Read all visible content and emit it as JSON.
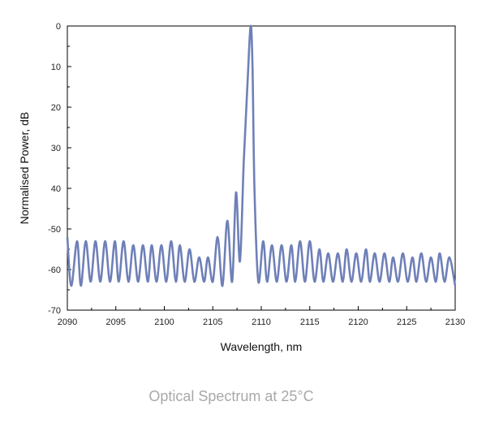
{
  "caption": "Optical Spectrum at 25°C",
  "chart_data": {
    "type": "line",
    "xlabel": "Wavelength, nm",
    "ylabel": "Normalised Power, dB",
    "xlim": [
      2090,
      2130
    ],
    "ylim": [
      -70,
      0
    ],
    "y_inverted_axis_direction": "top is 0, bottom is -70",
    "xticks": [
      2090,
      2095,
      2100,
      2105,
      2110,
      2115,
      2120,
      2125,
      2130
    ],
    "xtick_labels": [
      "2090",
      "2095",
      "2100",
      "2105",
      "2110",
      "2115",
      "2120",
      "2125",
      "2130"
    ],
    "yticks": [
      0,
      -10,
      -20,
      -30,
      -40,
      -50,
      -60,
      -70
    ],
    "ytick_labels": [
      "0",
      "10",
      "20",
      "30",
      "40",
      "-50",
      "-60",
      "-70"
    ],
    "grid": false,
    "series": [
      {
        "color": "#6f80b8",
        "x": [
          2090,
          2090.4,
          2091,
          2091.4,
          2091.9,
          2092.4,
          2092.9,
          2093.4,
          2093.9,
          2094.4,
          2094.9,
          2095.3,
          2095.8,
          2096.3,
          2096.8,
          2097.3,
          2097.8,
          2098.3,
          2098.7,
          2099.2,
          2099.7,
          2100.2,
          2100.7,
          2101.2,
          2101.6,
          2102.1,
          2102.6,
          2103.1,
          2103.6,
          2104.1,
          2104.5,
          2105,
          2105.5,
          2106,
          2106.5,
          2107,
          2107.4,
          2107.8,
          2108.2,
          2108.6,
          2108.9,
          2109.1,
          2109.3,
          2109.7,
          2110.2,
          2110.6,
          2111.1,
          2111.6,
          2112.1,
          2112.6,
          2113.1,
          2113.5,
          2114,
          2114.5,
          2115,
          2115.5,
          2116,
          2116.4,
          2116.9,
          2117.4,
          2117.9,
          2118.4,
          2118.8,
          2119.3,
          2119.8,
          2120.3,
          2120.8,
          2121.2,
          2121.7,
          2122.2,
          2122.7,
          2123.2,
          2123.6,
          2124.1,
          2124.6,
          2125.1,
          2125.6,
          2126,
          2126.5,
          2127,
          2127.5,
          2128,
          2128.4,
          2128.9,
          2129.4,
          2130
        ],
        "y": [
          -52,
          -64,
          -53,
          -64,
          -53,
          -63,
          -53,
          -63,
          -53,
          -63,
          -53,
          -63,
          -53,
          -63,
          -54,
          -63,
          -54,
          -63,
          -54,
          -63,
          -54,
          -63,
          -53,
          -63,
          -54,
          -63,
          -55,
          -63,
          -57,
          -63,
          -57,
          -63,
          -52,
          -64,
          -48,
          -63,
          -41,
          -58,
          -33,
          -13,
          0,
          -10,
          -40,
          -63,
          -53,
          -63,
          -54,
          -63,
          -54,
          -63,
          -54,
          -63,
          -53,
          -63,
          -53,
          -63,
          -55,
          -63,
          -56,
          -63,
          -56,
          -63,
          -55,
          -63,
          -56,
          -63,
          -55,
          -63,
          -56,
          -63,
          -56,
          -63,
          -57,
          -63,
          -56,
          -63,
          -57,
          -63,
          -56,
          -63,
          -57,
          -63,
          -56,
          -63,
          -57,
          -64
        ]
      }
    ]
  }
}
